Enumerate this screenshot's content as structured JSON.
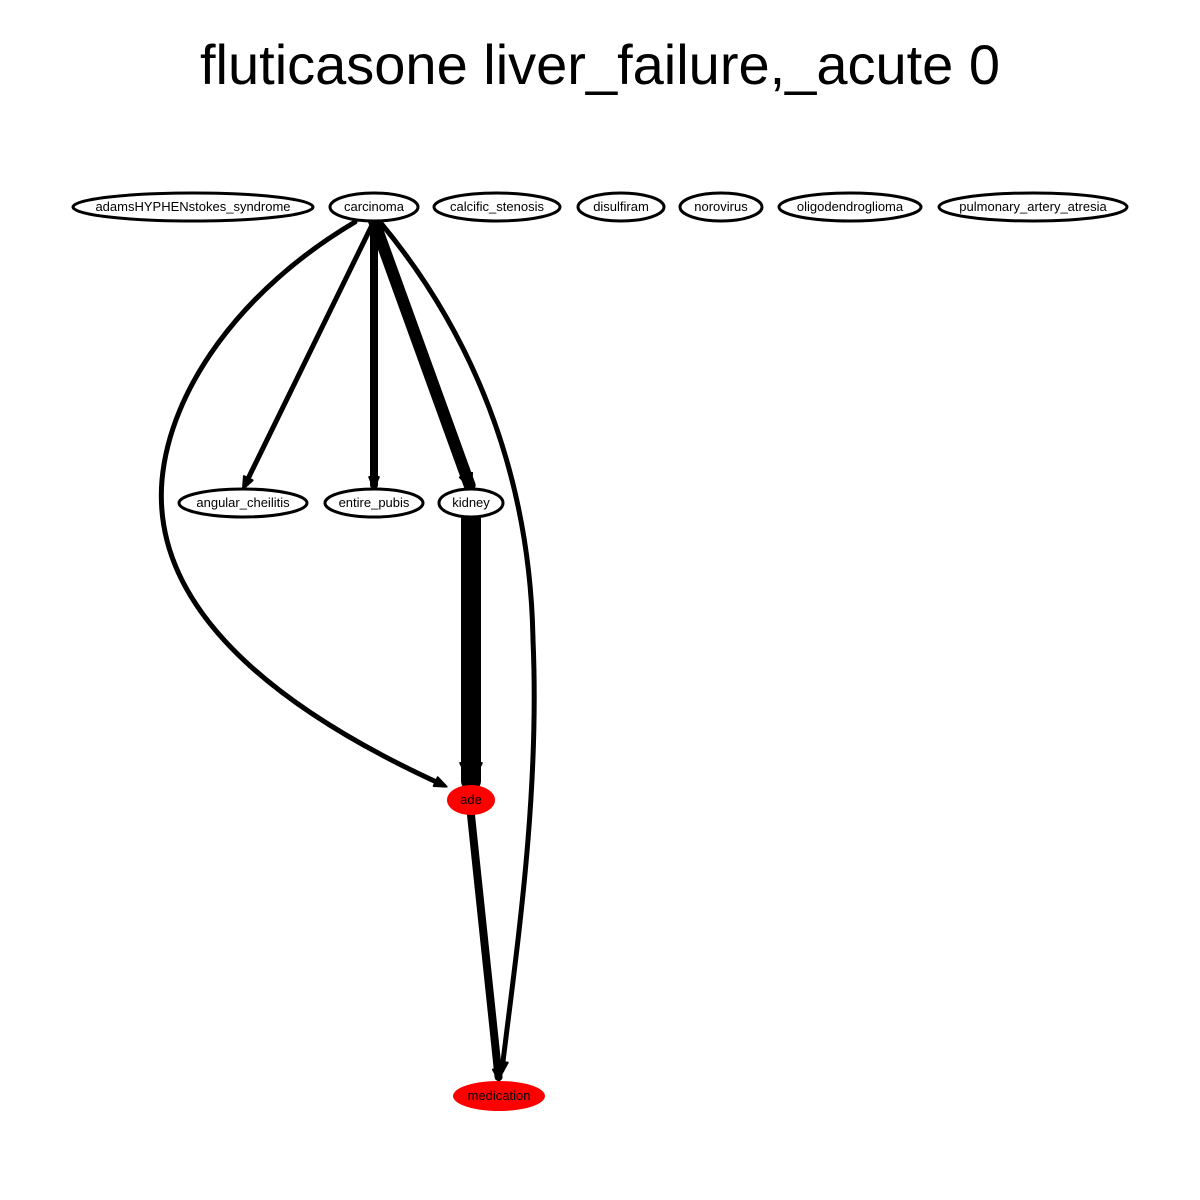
{
  "title": "fluticasone liver_failure,_acute 0",
  "colors": {
    "edge": "#000000",
    "node_outline": "#000000",
    "node_fill": "#ffffff",
    "highlight_fill": "#ff0000"
  },
  "nodes": [
    {
      "id": "adams",
      "label": "adamsHYPHENstokes_syndrome",
      "highlight": false
    },
    {
      "id": "carcinoma",
      "label": "carcinoma",
      "highlight": false
    },
    {
      "id": "calcific",
      "label": "calcific_stenosis",
      "highlight": false
    },
    {
      "id": "disulfiram",
      "label": "disulfiram",
      "highlight": false
    },
    {
      "id": "norovirus",
      "label": "norovirus",
      "highlight": false
    },
    {
      "id": "oligo",
      "label": "oligodendroglioma",
      "highlight": false
    },
    {
      "id": "pulmonary",
      "label": "pulmonary_artery_atresia",
      "highlight": false
    },
    {
      "id": "angular",
      "label": "angular_cheilitis",
      "highlight": false
    },
    {
      "id": "pubis",
      "label": "entire_pubis",
      "highlight": false
    },
    {
      "id": "kidney",
      "label": "kidney",
      "highlight": false
    },
    {
      "id": "ade",
      "label": "ade",
      "highlight": true
    },
    {
      "id": "medication",
      "label": "medication",
      "highlight": true
    }
  ],
  "edges": [
    {
      "from": "carcinoma",
      "to": "angular",
      "weight": 1
    },
    {
      "from": "carcinoma",
      "to": "pubis",
      "weight": 2
    },
    {
      "from": "carcinoma",
      "to": "kidney",
      "weight": 3
    },
    {
      "from": "carcinoma",
      "to": "ade",
      "weight": 1
    },
    {
      "from": "carcinoma",
      "to": "medication",
      "weight": 1
    },
    {
      "from": "kidney",
      "to": "ade",
      "weight": 5
    },
    {
      "from": "ade",
      "to": "medication",
      "weight": 2
    }
  ]
}
